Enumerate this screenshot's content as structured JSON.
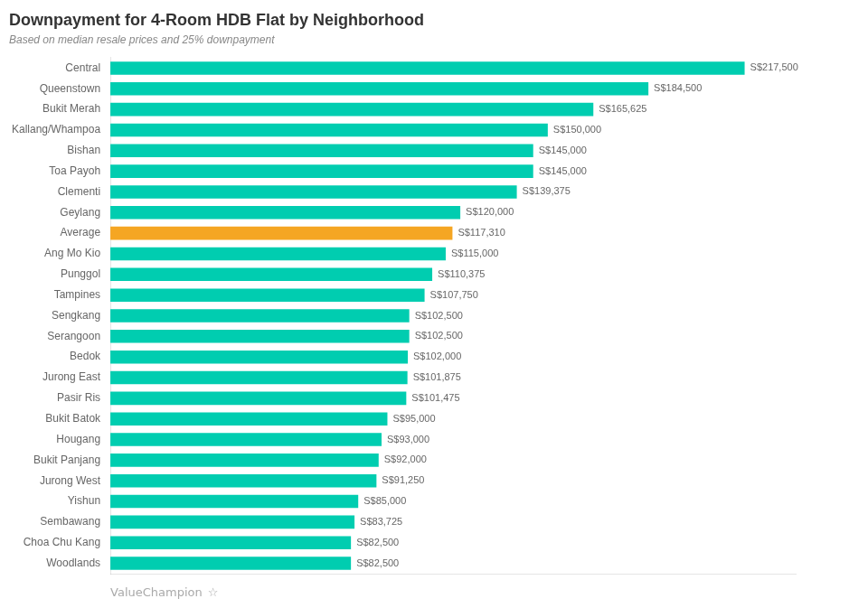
{
  "chart_data": {
    "type": "bar",
    "orientation": "horizontal",
    "title": "Downpayment for 4-Room HDB Flat by Neighborhood",
    "subtitle": "Based on median resale prices and 25% downpayment",
    "categories": [
      "Central",
      "Queenstown",
      "Bukit Merah",
      "Kallang/Whampoa",
      "Bishan",
      "Toa Payoh",
      "Clementi",
      "Geylang",
      "Average",
      "Ang Mo Kio",
      "Punggol",
      "Tampines",
      "Sengkang",
      "Serangoon",
      "Bedok",
      "Jurong East",
      "Pasir Ris",
      "Bukit Batok",
      "Hougang",
      "Bukit Panjang",
      "Jurong West",
      "Yishun",
      "Sembawang",
      "Choa Chu Kang",
      "Woodlands"
    ],
    "values": [
      217500,
      184500,
      165625,
      150000,
      145000,
      145000,
      139375,
      120000,
      117310,
      115000,
      110375,
      107750,
      102500,
      102500,
      102000,
      101875,
      101475,
      95000,
      93000,
      92000,
      91250,
      85000,
      83725,
      82500,
      82500
    ],
    "value_labels": [
      "S$217,500",
      "S$184,500",
      "S$165,625",
      "S$150,000",
      "S$145,000",
      "S$145,000",
      "S$139,375",
      "S$120,000",
      "S$117,310",
      "S$115,000",
      "S$110,375",
      "S$107,750",
      "S$102,500",
      "S$102,500",
      "S$102,000",
      "S$101,875",
      "S$101,475",
      "S$95,000",
      "S$93,000",
      "S$92,000",
      "S$91,250",
      "S$85,000",
      "S$83,725",
      "S$82,500",
      "S$82,500"
    ],
    "data_labels": true,
    "colors": [
      "#00CDB0",
      "#00CDB0",
      "#00CDB0",
      "#00CDB0",
      "#00CDB0",
      "#00CDB0",
      "#00CDB0",
      "#00CDB0",
      "#F5A623",
      "#00CDB0",
      "#00CDB0",
      "#00CDB0",
      "#00CDB0",
      "#00CDB0",
      "#00CDB0",
      "#00CDB0",
      "#00CDB0",
      "#00CDB0",
      "#00CDB0",
      "#00CDB0",
      "#00CDB0",
      "#00CDB0",
      "#00CDB0",
      "#00CDB0",
      "#00CDB0"
    ],
    "xlim": [
      0,
      235000
    ],
    "tick_labels": "y",
    "grid": false,
    "annotations": [
      "ValueChampion",
      "☆"
    ]
  }
}
